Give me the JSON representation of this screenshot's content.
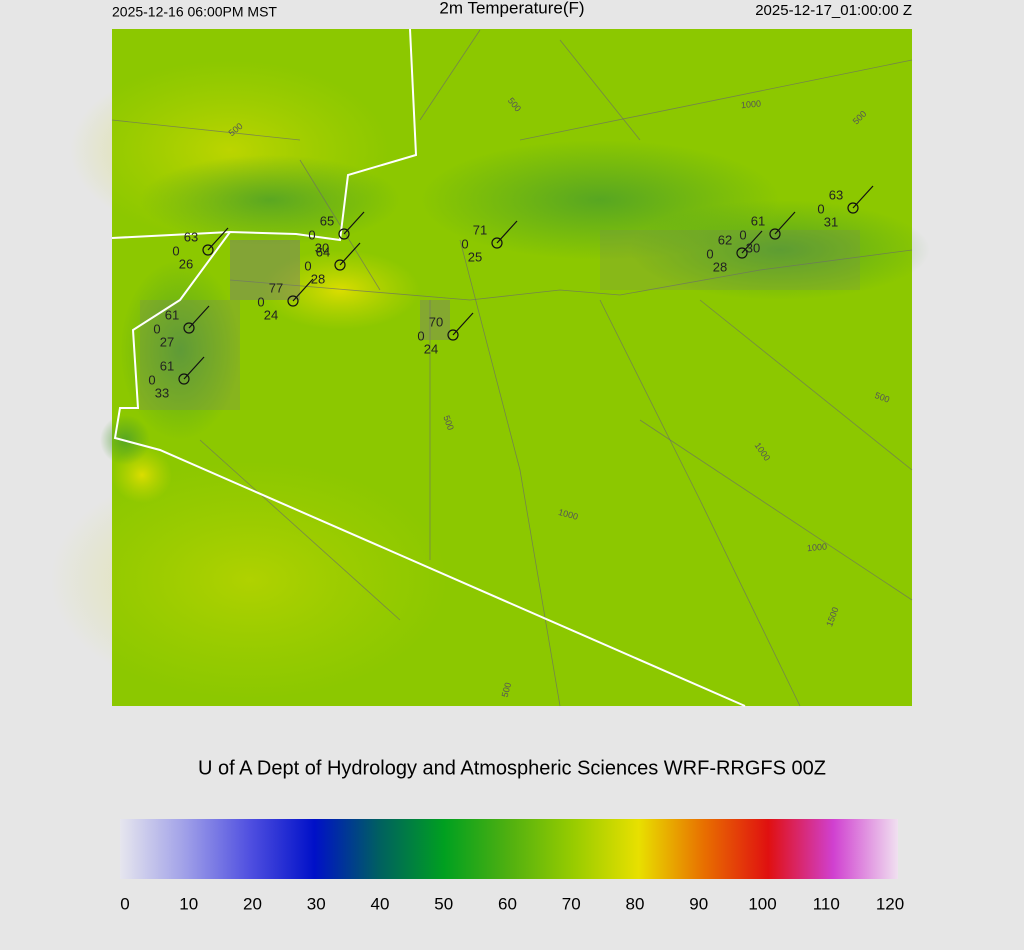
{
  "header": {
    "left": "2025-12-16 06:00PM MST",
    "title": "2m Temperature(F)",
    "right": "2025-12-17_01:00:00 Z"
  },
  "stations": [
    {
      "temperature": "63",
      "wind": "0",
      "dewpoint": "26"
    },
    {
      "temperature": "65",
      "wind": "0",
      "dewpoint": "30"
    },
    {
      "temperature": "64",
      "wind": "0",
      "dewpoint": "28"
    },
    {
      "temperature": "77",
      "wind": "0",
      "dewpoint": "24"
    },
    {
      "temperature": "61",
      "wind": "0",
      "dewpoint": "27"
    },
    {
      "temperature": "61",
      "wind": "0",
      "dewpoint": "33"
    },
    {
      "temperature": "70",
      "wind": "0",
      "dewpoint": "24"
    },
    {
      "temperature": "71",
      "wind": "0",
      "dewpoint": "25"
    },
    {
      "temperature": "62",
      "wind": "0",
      "dewpoint": "28"
    },
    {
      "temperature": "61",
      "wind": "0",
      "dewpoint": "30"
    },
    {
      "temperature": "63",
      "wind": "0",
      "dewpoint": "31"
    }
  ],
  "contour_labels": [
    "500",
    "500",
    "1000",
    "500",
    "500",
    "1000",
    "500",
    "1000",
    "1000",
    "1500",
    "500"
  ],
  "credit": "U of A Dept of Hydrology and Atmospheric Sciences WRF-RRGFS 00Z",
  "colorbar": {
    "ticks": [
      0,
      10,
      20,
      30,
      40,
      50,
      60,
      70,
      80,
      90,
      100,
      110,
      120
    ],
    "colors": [
      "#e6e6ee",
      "#a0a0e8",
      "#5050e0",
      "#0010c8",
      "#006060",
      "#00a020",
      "#50b010",
      "#98cc00",
      "#e8e000",
      "#e87000",
      "#e01010",
      "#d040d0",
      "#f0e0f0"
    ]
  }
}
